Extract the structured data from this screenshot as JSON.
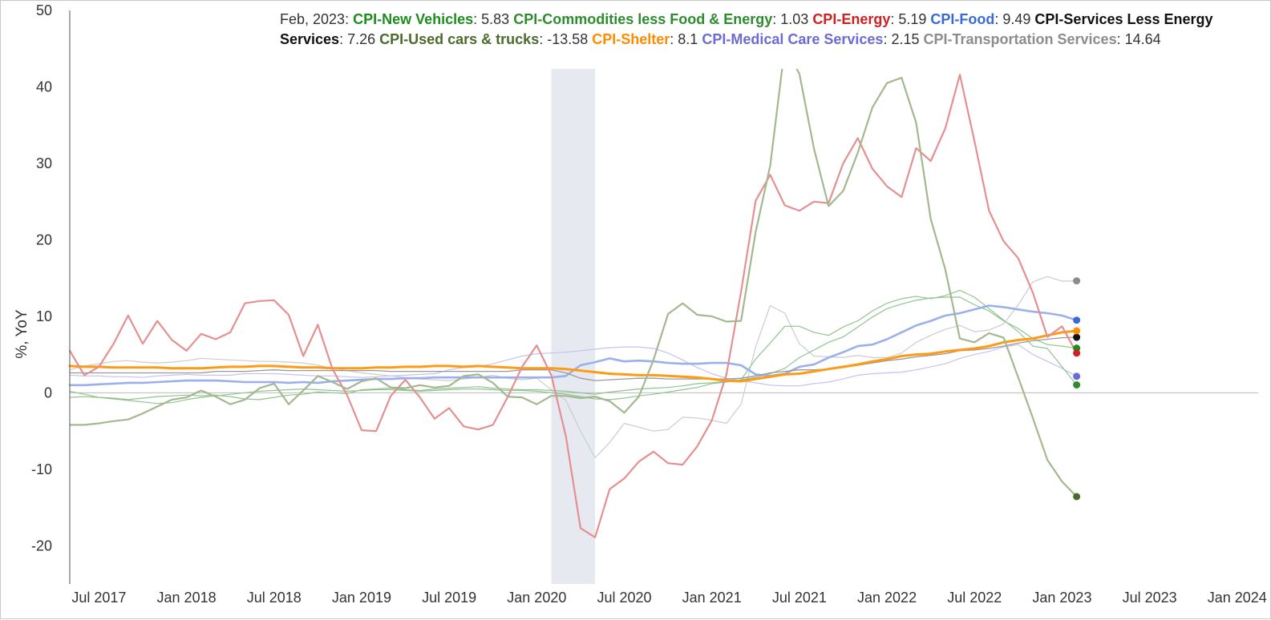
{
  "chart_data": {
    "type": "line",
    "ylabel": "%, YoY",
    "ylim": [
      -25,
      50
    ],
    "yticks": [
      50,
      40,
      30,
      20,
      10,
      0,
      -10,
      -20
    ],
    "xlim": [
      "2017-05",
      "2024-02"
    ],
    "xticks": [
      {
        "label": "Jul 2017",
        "date": "2017-07"
      },
      {
        "label": "Jan 2018",
        "date": "2018-01"
      },
      {
        "label": "Jul 2018",
        "date": "2018-07"
      },
      {
        "label": "Jan 2019",
        "date": "2019-01"
      },
      {
        "label": "Jul 2019",
        "date": "2019-07"
      },
      {
        "label": "Jan 2020",
        "date": "2020-01"
      },
      {
        "label": "Jul 2020",
        "date": "2020-07"
      },
      {
        "label": "Jan 2021",
        "date": "2021-01"
      },
      {
        "label": "Jul 2021",
        "date": "2021-07"
      },
      {
        "label": "Jan 2022",
        "date": "2022-01"
      },
      {
        "label": "Jul 2022",
        "date": "2022-07"
      },
      {
        "label": "Jan 2023",
        "date": "2023-01"
      },
      {
        "label": "Jul 2023",
        "date": "2023-07"
      },
      {
        "label": "Jan 2024",
        "date": "2024-01"
      }
    ],
    "recession": {
      "start": "2020-02",
      "end": "2020-04"
    },
    "legend": {
      "date_label": "Feb, 2023"
    },
    "x": [
      "2017-05",
      "2017-06",
      "2017-07",
      "2017-08",
      "2017-09",
      "2017-10",
      "2017-11",
      "2017-12",
      "2018-01",
      "2018-02",
      "2018-03",
      "2018-04",
      "2018-05",
      "2018-06",
      "2018-07",
      "2018-08",
      "2018-09",
      "2018-10",
      "2018-11",
      "2018-12",
      "2019-01",
      "2019-02",
      "2019-03",
      "2019-04",
      "2019-05",
      "2019-06",
      "2019-07",
      "2019-08",
      "2019-09",
      "2019-10",
      "2019-11",
      "2019-12",
      "2020-01",
      "2020-02",
      "2020-03",
      "2020-04",
      "2020-05",
      "2020-06",
      "2020-07",
      "2020-08",
      "2020-09",
      "2020-10",
      "2020-11",
      "2020-12",
      "2021-01",
      "2021-02",
      "2021-03",
      "2021-04",
      "2021-05",
      "2021-06",
      "2021-07",
      "2021-08",
      "2021-09",
      "2021-10",
      "2021-11",
      "2021-12",
      "2022-01",
      "2022-02",
      "2022-03",
      "2022-04",
      "2022-05",
      "2022-06",
      "2022-07",
      "2022-08",
      "2022-09",
      "2022-10",
      "2022-11",
      "2022-12",
      "2023-01",
      "2023-02"
    ],
    "series": [
      {
        "name": "CPI-Transportation Services",
        "latest": "14.64",
        "color": "#8c8c8c",
        "line_color": "#cccccc",
        "width": 1.2,
        "clip_top": false,
        "values": [
          3.0,
          3.5,
          3.8,
          4.1,
          4.2,
          4.0,
          3.9,
          4.0,
          4.2,
          4.5,
          4.4,
          4.3,
          4.2,
          4.1,
          4.1,
          4.0,
          3.9,
          3.6,
          3.2,
          2.9,
          2.6,
          2.4,
          2.2,
          2.0,
          1.8,
          1.7,
          1.6,
          1.8,
          2.0,
          2.3,
          1.9,
          1.7,
          1.9,
          0.4,
          -1.0,
          -5.0,
          -8.5,
          -6.5,
          -4.0,
          -4.5,
          -5.0,
          -4.8,
          -3.2,
          -3.3,
          -3.6,
          -4.0,
          -1.5,
          6.0,
          11.4,
          10.4,
          6.4,
          4.8,
          4.7,
          4.6,
          4.9,
          4.6,
          4.6,
          5.2,
          6.6,
          7.5,
          8.3,
          8.8,
          8.0,
          8.2,
          9.0,
          11.5,
          14.5,
          15.2,
          14.6,
          14.64
        ]
      },
      {
        "name": "CPI-Medical Care Services",
        "latest": "2.15",
        "color": "#6b6bd6",
        "line_color": "#c4c2f0",
        "width": 1.2,
        "clip_top": false,
        "values": [
          2.3,
          2.2,
          2.2,
          2.1,
          2.1,
          2.0,
          2.2,
          2.3,
          2.4,
          2.3,
          2.3,
          2.3,
          2.5,
          2.5,
          2.5,
          2.4,
          2.3,
          2.2,
          2.2,
          2.1,
          2.0,
          2.1,
          2.2,
          2.3,
          2.4,
          2.5,
          3.0,
          3.3,
          3.4,
          3.8,
          4.3,
          4.8,
          5.1,
          5.2,
          5.3,
          5.5,
          5.7,
          5.9,
          6.0,
          6.0,
          5.8,
          5.2,
          4.3,
          3.3,
          2.5,
          1.9,
          1.6,
          1.3,
          1.0,
          0.9,
          0.9,
          1.2,
          1.4,
          1.8,
          2.3,
          2.5,
          2.6,
          2.7,
          3.0,
          3.4,
          3.8,
          4.5,
          5.0,
          5.4,
          6.0,
          6.3,
          5.0,
          4.1,
          3.2,
          2.15
        ]
      },
      {
        "name": "CPI-Commodities less Food & Energy",
        "latest": "1.03",
        "color": "#2e8b2e",
        "line_color": "#93c493",
        "width": 1.2,
        "clip_top": false,
        "values": [
          -0.6,
          -0.5,
          -0.6,
          -0.8,
          -1.0,
          -1.2,
          -1.4,
          -1.3,
          -0.9,
          -0.6,
          -0.4,
          -0.2,
          0.0,
          0.2,
          0.3,
          0.4,
          0.5,
          0.4,
          0.3,
          0.2,
          0.3,
          0.4,
          0.4,
          0.3,
          0.2,
          0.3,
          0.4,
          0.5,
          0.5,
          0.4,
          0.3,
          0.3,
          0.2,
          0.0,
          -0.2,
          -0.5,
          -0.8,
          -0.9,
          -0.7,
          -0.4,
          -0.2,
          0.1,
          0.4,
          0.7,
          1.2,
          1.4,
          1.7,
          4.4,
          6.5,
          8.7,
          8.7,
          7.9,
          7.5,
          8.6,
          9.4,
          10.7,
          11.7,
          12.3,
          12.6,
          12.3,
          12.7,
          13.4,
          12.5,
          11.0,
          9.5,
          8.0,
          6.1,
          5.8,
          3.4,
          1.03
        ]
      },
      {
        "name": "CPI-New Vehicles",
        "latest": "5.83",
        "color": "#1e8c1e",
        "line_color": "#8fc48f",
        "width": 1.2,
        "clip_top": false,
        "values": [
          0.2,
          -0.2,
          -0.6,
          -0.7,
          -0.9,
          -0.7,
          -0.5,
          -0.4,
          -0.3,
          -0.4,
          -0.3,
          -0.5,
          -0.8,
          -0.9,
          -0.6,
          -0.3,
          -0.2,
          0.1,
          0.0,
          -0.1,
          0.4,
          0.5,
          0.6,
          0.4,
          0.3,
          0.5,
          0.6,
          0.7,
          0.8,
          0.6,
          0.5,
          0.4,
          0.4,
          0.3,
          0.2,
          0.0,
          -0.2,
          0.1,
          0.3,
          0.5,
          0.6,
          0.7,
          0.9,
          1.2,
          1.3,
          1.5,
          1.7,
          2.0,
          2.5,
          3.2,
          4.6,
          5.6,
          6.6,
          7.3,
          8.6,
          9.9,
          11.0,
          11.6,
          12.1,
          12.4,
          12.5,
          12.5,
          11.5,
          10.7,
          9.4,
          8.4,
          7.1,
          6.3,
          6.1,
          5.83
        ]
      },
      {
        "name": "CPI-Food",
        "latest": "9.49",
        "color": "#3a6ad6",
        "line_color": "#9ab0ea",
        "width": 2.6,
        "clip_top": false,
        "values": [
          1.0,
          1.0,
          1.1,
          1.2,
          1.3,
          1.3,
          1.4,
          1.5,
          1.6,
          1.6,
          1.6,
          1.5,
          1.4,
          1.4,
          1.4,
          1.3,
          1.4,
          1.3,
          1.5,
          1.6,
          1.7,
          1.8,
          1.8,
          1.9,
          1.9,
          2.0,
          2.0,
          2.0,
          2.0,
          2.0,
          2.0,
          2.0,
          2.0,
          2.0,
          2.2,
          3.6,
          4.0,
          4.5,
          4.1,
          4.2,
          4.1,
          3.9,
          3.8,
          3.8,
          3.9,
          3.9,
          3.6,
          2.4,
          2.2,
          2.5,
          3.4,
          3.7,
          4.6,
          5.3,
          6.1,
          6.3,
          7.0,
          7.9,
          8.8,
          9.4,
          10.1,
          10.4,
          10.9,
          11.4,
          11.2,
          10.9,
          10.6,
          10.4,
          10.1,
          9.49
        ]
      },
      {
        "name": "CPI-Services Less Energy Services",
        "latest": "7.26",
        "color": "#111111",
        "line_color": "#999999",
        "width": 1.3,
        "clip_top": false,
        "values": [
          2.6,
          2.6,
          2.6,
          2.6,
          2.6,
          2.6,
          2.6,
          2.6,
          2.6,
          2.6,
          2.8,
          2.8,
          2.8,
          2.9,
          3.0,
          2.9,
          2.9,
          2.9,
          2.9,
          2.9,
          2.9,
          2.9,
          2.8,
          2.8,
          2.8,
          2.8,
          2.8,
          2.8,
          2.8,
          2.8,
          2.8,
          3.0,
          3.0,
          3.0,
          2.6,
          1.9,
          1.6,
          1.7,
          1.8,
          1.9,
          1.9,
          1.8,
          1.8,
          1.8,
          1.8,
          1.8,
          1.9,
          2.2,
          2.6,
          2.8,
          3.0,
          3.0,
          3.1,
          3.3,
          3.6,
          3.9,
          4.2,
          4.4,
          4.7,
          4.9,
          5.1,
          5.5,
          5.6,
          5.8,
          6.1,
          6.5,
          6.8,
          7.0,
          7.2,
          7.26
        ]
      },
      {
        "name": "CPI-Shelter",
        "latest": "8.1",
        "color": "#ff8c00",
        "line_color": "#ff9a14",
        "width": 3.0,
        "clip_top": false,
        "values": [
          3.5,
          3.4,
          3.4,
          3.3,
          3.3,
          3.3,
          3.3,
          3.2,
          3.2,
          3.2,
          3.3,
          3.4,
          3.4,
          3.5,
          3.5,
          3.4,
          3.3,
          3.3,
          3.2,
          3.2,
          3.2,
          3.3,
          3.3,
          3.4,
          3.4,
          3.5,
          3.5,
          3.4,
          3.5,
          3.4,
          3.3,
          3.2,
          3.2,
          3.2,
          3.1,
          2.9,
          2.7,
          2.5,
          2.4,
          2.3,
          2.3,
          2.2,
          2.1,
          2.0,
          1.8,
          1.6,
          1.5,
          1.8,
          2.1,
          2.4,
          2.5,
          2.8,
          3.1,
          3.4,
          3.7,
          4.1,
          4.4,
          4.8,
          5.0,
          5.1,
          5.4,
          5.6,
          5.8,
          6.1,
          6.6,
          6.9,
          7.1,
          7.5,
          7.9,
          8.1
        ]
      },
      {
        "name": "CPI-Energy",
        "latest": "5.19",
        "color": "#cc2222",
        "line_color": "#e49090",
        "width": 2.2,
        "clip_top": false,
        "values": [
          5.5,
          2.3,
          3.4,
          6.4,
          10.1,
          6.4,
          9.4,
          6.9,
          5.5,
          7.7,
          7.0,
          7.9,
          11.7,
          12.0,
          12.1,
          10.2,
          4.8,
          8.9,
          3.1,
          -0.3,
          -4.9,
          -5.0,
          -0.4,
          1.7,
          -0.6,
          -3.4,
          -2.0,
          -4.4,
          -4.8,
          -4.2,
          -0.6,
          3.4,
          6.2,
          2.3,
          -5.7,
          -17.7,
          -18.9,
          -12.6,
          -11.2,
          -9.0,
          -7.7,
          -9.2,
          -9.4,
          -7.0,
          -3.6,
          2.4,
          13.2,
          25.1,
          28.5,
          24.5,
          23.8,
          25.0,
          24.8,
          30.0,
          33.3,
          29.3,
          27.0,
          25.6,
          32.0,
          30.3,
          34.6,
          41.6,
          32.9,
          23.8,
          19.8,
          17.6,
          13.1,
          7.3,
          8.7,
          5.19
        ]
      },
      {
        "name": "CPI-Used cars & trucks",
        "latest": "-13.58",
        "color": "#4b6b2b",
        "line_color": "#a4b890",
        "width": 2.2,
        "clip_top": true,
        "values": [
          -4.2,
          -4.2,
          -4.0,
          -3.7,
          -3.5,
          -2.7,
          -1.8,
          -0.9,
          -0.6,
          0.3,
          -0.5,
          -1.5,
          -0.9,
          0.6,
          1.2,
          -1.5,
          0.3,
          2.2,
          1.4,
          0.5,
          1.5,
          1.9,
          0.7,
          0.6,
          1.0,
          0.7,
          0.9,
          2.2,
          2.4,
          1.3,
          -0.5,
          -0.6,
          -1.5,
          -0.4,
          -0.4,
          -0.7,
          -0.5,
          -1.1,
          -2.6,
          -0.5,
          4.3,
          10.3,
          11.7,
          10.2,
          10.0,
          9.3,
          9.4,
          21.0,
          29.7,
          45.2,
          41.7,
          31.9,
          24.4,
          26.4,
          31.4,
          37.3,
          40.5,
          41.2,
          35.3,
          22.7,
          16.1,
          7.1,
          6.6,
          7.8,
          7.2,
          2.0,
          -3.3,
          -8.8,
          -11.6,
          -13.58
        ]
      }
    ]
  }
}
